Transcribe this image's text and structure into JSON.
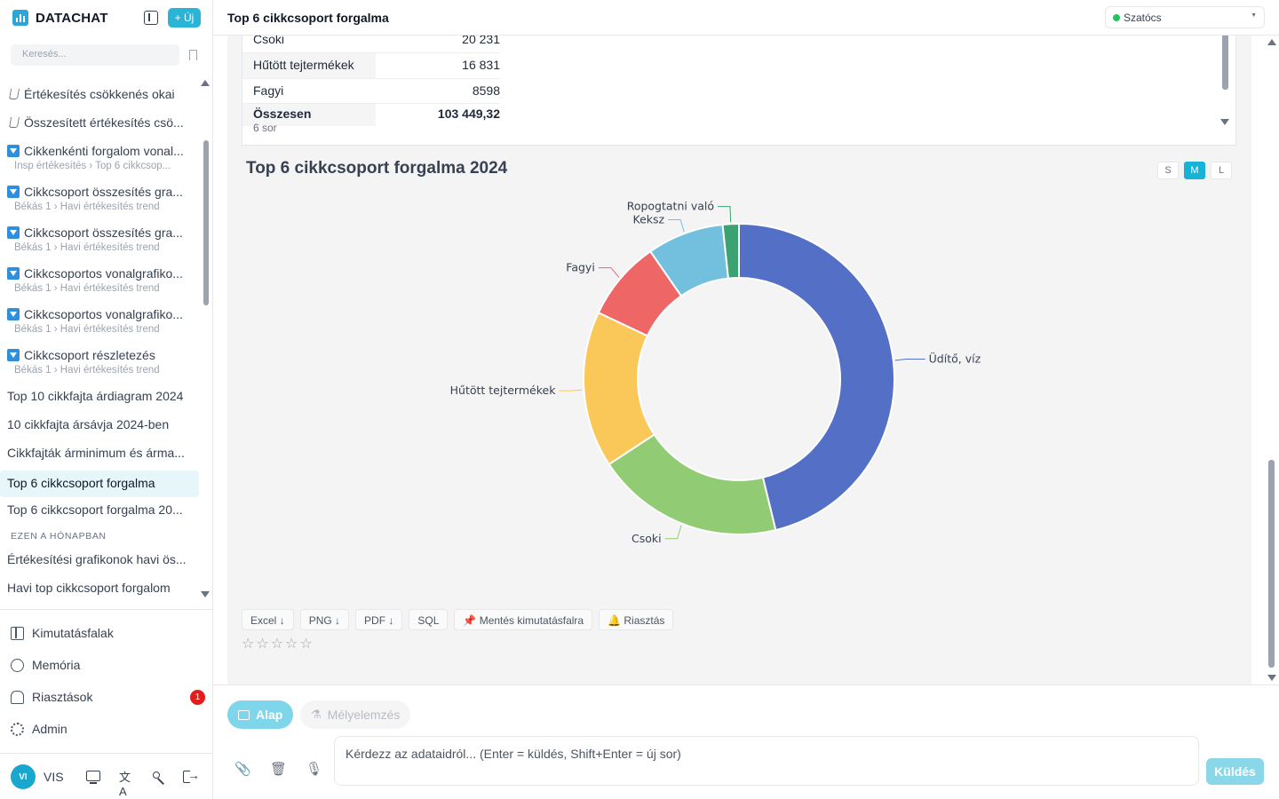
{
  "app": {
    "brand": "DATACHAT",
    "new_button": "+ Új",
    "title": "Top 6 cikkcsoport forgalma"
  },
  "search": {
    "placeholder": "Keresés..."
  },
  "store_selector": {
    "value": "Szatócs",
    "status_color": "#22c55e"
  },
  "conversations": [
    {
      "title": "Értékesítés csökkenés okai",
      "icon": "flask-icon"
    },
    {
      "title": "Összesített értékesítés csö...",
      "icon": "flask-icon"
    },
    {
      "title": "Cikkenkénti forgalom vonal...",
      "icon": "chart-icon",
      "sub": "Insp értékesítés › Top 6 cikkcsop..."
    },
    {
      "title": "Cikkcsoport összesítés gra...",
      "icon": "chart-icon",
      "sub": "Békás 1 › Havi értékesítés trend"
    },
    {
      "title": "Cikkcsoport összesítés gra...",
      "icon": "chart-icon",
      "sub": "Békás 1 › Havi értékesítés trend"
    },
    {
      "title": "Cikkcsoportos vonalgrafiko...",
      "icon": "chart-icon",
      "sub": "Békás 1 › Havi értékesítés trend"
    },
    {
      "title": "Cikkcsoportos vonalgrafiko...",
      "icon": "chart-icon",
      "sub": "Békás 1 › Havi értékesítés trend"
    },
    {
      "title": "Cikkcsoport részletezés",
      "icon": "chart-icon",
      "sub": "Békás 1 › Havi értékesítés trend"
    },
    {
      "title": "Top 10 cikkfajta árdiagram 2024"
    },
    {
      "title": "10 cikkfajta ársávja 2024-ben"
    },
    {
      "title": "Cikkfajták árminimum és árma..."
    },
    {
      "title": "Top 6 cikkcsoport forgalma",
      "active": true
    },
    {
      "title": "Top 6 cikkcsoport forgalma 20..."
    },
    {
      "title": "Értékesítési grafikonok havi ös..."
    },
    {
      "title": "Havi top cikkcsoport forgalom"
    }
  ],
  "section_label": "EZEN A HÓNAPBAN",
  "nav": {
    "dashboards": "Kimutatásfalak",
    "memory": "Memória",
    "alerts": "Riasztások",
    "alerts_badge": "1",
    "admin": "Admin"
  },
  "user": {
    "initials": "VI",
    "name": "VIS"
  },
  "table": {
    "rows": [
      {
        "name": "Csoki",
        "value": "20 231"
      },
      {
        "name": "Hűtött tejtermékek",
        "value": "16 831"
      },
      {
        "name": "Fagyi",
        "value": "8598"
      },
      {
        "name": "Összesen",
        "value": "103 449,32"
      }
    ],
    "row_count": "6 sor"
  },
  "chart_title": "Top 6 cikkcsoport forgalma 2024",
  "size_buttons": [
    "S",
    "M",
    "L"
  ],
  "chart_data": {
    "type": "pie",
    "donut": true,
    "categories": [
      "Üdítő, víz",
      "Csoki",
      "Hűtött tejtermékek",
      "Fagyi",
      "Keksz",
      "Ropogtatni való"
    ],
    "values": [
      47800,
      20231,
      16831,
      8598,
      8249,
      1740
    ],
    "colors": [
      "#5470c6",
      "#91cc75",
      "#fac858",
      "#ee6666",
      "#73c0de",
      "#3ba272"
    ],
    "labels_shown": true
  },
  "export": {
    "excel": "Excel",
    "png": "PNG",
    "pdf": "PDF",
    "sql": "SQL",
    "save": "Mentés kimutatásfalra",
    "alert": "Riasztás",
    "rating": "☆☆☆☆☆"
  },
  "composer": {
    "mode_basic": "Alap",
    "mode_deep": "Mélyelemzés",
    "placeholder": "Kérdezz az adataidról... (Enter = küldés, Shift+Enter = új sor)",
    "send": "Küldés"
  }
}
